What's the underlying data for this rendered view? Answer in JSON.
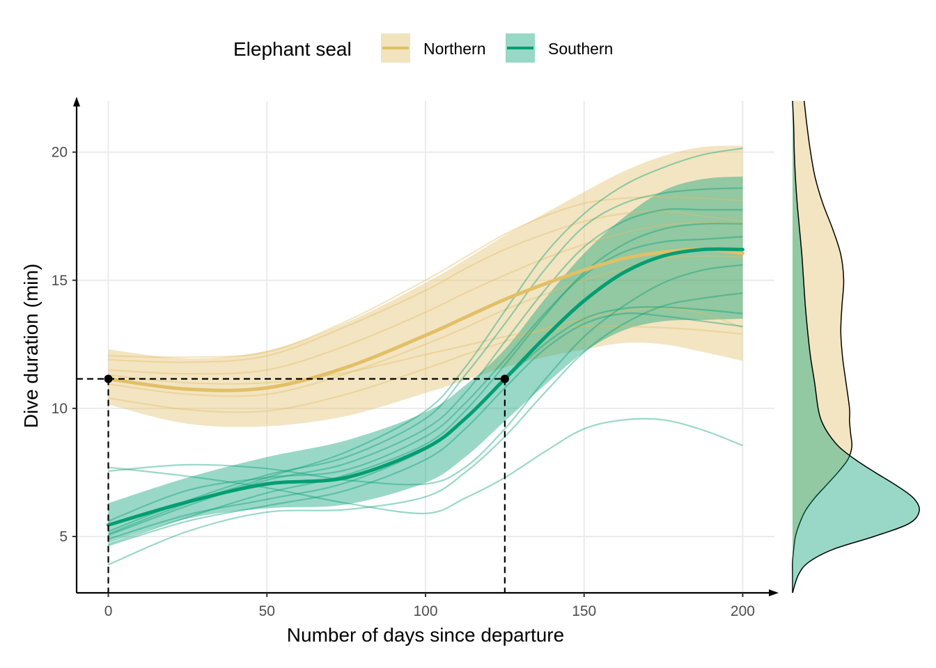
{
  "chart_data": {
    "type": "line",
    "xlabel": "Number of days since departure",
    "ylabel": "Dive duration (min)",
    "xlim": [
      -10,
      210
    ],
    "ylim": [
      2.8,
      22
    ],
    "x_ticks": [
      0,
      50,
      100,
      150,
      200
    ],
    "y_ticks": [
      5,
      10,
      15,
      20
    ],
    "grid": true,
    "legend": {
      "title": "Elephant seal",
      "position": "top",
      "entries": [
        "Northern",
        "Southern"
      ]
    },
    "colors": {
      "Northern": "#E2BF66",
      "Southern": "#009E73"
    },
    "x": [
      0,
      25,
      50,
      75,
      100,
      112.5,
      125,
      137.5,
      150,
      162.5,
      175,
      187.5,
      200
    ],
    "series": [
      {
        "name": "Northern",
        "mean": [
          11.15,
          10.75,
          10.8,
          11.6,
          12.85,
          13.55,
          14.25,
          14.85,
          15.4,
          15.85,
          16.1,
          16.2,
          16.05
        ],
        "lower": [
          10.15,
          9.4,
          9.3,
          9.7,
          10.6,
          11.1,
          11.6,
          12.0,
          12.3,
          12.55,
          12.5,
          12.2,
          11.85
        ],
        "upper": [
          12.3,
          11.95,
          12.25,
          13.35,
          14.9,
          15.8,
          16.75,
          17.6,
          18.45,
          19.25,
          19.85,
          20.2,
          20.25
        ],
        "individuals": [
          [
            11.9,
            11.8,
            12.05,
            13.2,
            14.6,
            15.45,
            16.2,
            16.8,
            17.3,
            17.6,
            17.7,
            17.5,
            17.3
          ],
          [
            11.5,
            11.35,
            11.5,
            12.45,
            13.75,
            14.5,
            15.2,
            15.85,
            16.4,
            16.85,
            17.15,
            17.25,
            17.2
          ],
          [
            10.95,
            10.55,
            10.55,
            11.35,
            12.5,
            13.15,
            13.85,
            14.45,
            15.0,
            15.45,
            15.85,
            15.95,
            15.9
          ],
          [
            10.4,
            9.95,
            9.9,
            10.55,
            11.55,
            12.1,
            12.6,
            13.1,
            13.5,
            13.8,
            13.9,
            13.7,
            13.15
          ],
          [
            11.3,
            11.0,
            11.0,
            11.4,
            12.1,
            12.45,
            12.8,
            13.05,
            13.2,
            13.2,
            13.15,
            13.05,
            12.9
          ],
          [
            12.05,
            12.0,
            12.2,
            13.4,
            15.0,
            15.9,
            16.8,
            17.5,
            18.0,
            18.2,
            18.25,
            18.2,
            18.1
          ]
        ]
      },
      {
        "name": "Southern",
        "mean": [
          5.45,
          6.35,
          7.05,
          7.3,
          8.45,
          9.6,
          11.15,
          12.75,
          14.2,
          15.3,
          15.95,
          16.2,
          16.2
        ],
        "lower": [
          4.75,
          5.7,
          6.1,
          6.25,
          7.1,
          8.1,
          9.5,
          10.9,
          12.2,
          13.05,
          13.4,
          13.45,
          13.5
        ],
        "upper": [
          6.3,
          7.3,
          8.1,
          8.75,
          9.85,
          10.9,
          12.3,
          14.25,
          16.05,
          17.45,
          18.5,
          18.95,
          19.05
        ],
        "individuals": [
          [
            5.05,
            6.2,
            7.2,
            7.85,
            9.2,
            10.6,
            12.6,
            14.6,
            16.3,
            17.3,
            17.75,
            17.75,
            17.75
          ],
          [
            4.7,
            5.75,
            6.7,
            7.4,
            8.6,
            9.9,
            11.7,
            13.6,
            15.3,
            16.4,
            17.0,
            17.2,
            17.2
          ],
          [
            5.2,
            6.4,
            7.4,
            8.1,
            9.6,
            11.3,
            13.3,
            15.4,
            17.1,
            18.0,
            18.4,
            18.55,
            18.6
          ],
          [
            4.9,
            5.85,
            6.45,
            7.1,
            8.4,
            9.6,
            11.1,
            12.5,
            13.5,
            13.9,
            13.95,
            13.85,
            13.7
          ],
          [
            4.65,
            5.6,
            6.2,
            6.8,
            8.0,
            9.2,
            10.8,
            12.3,
            13.3,
            13.7,
            13.6,
            13.4,
            13.2
          ],
          [
            5.1,
            6.3,
            7.3,
            8.3,
            9.9,
            11.6,
            13.8,
            16.0,
            17.6,
            18.7,
            19.4,
            19.9,
            20.15
          ],
          [
            7.55,
            7.8,
            7.65,
            7.2,
            7.05,
            7.7,
            9.2,
            11.1,
            12.8,
            14.0,
            14.9,
            15.4,
            15.6
          ],
          [
            7.7,
            7.35,
            6.9,
            6.3,
            5.9,
            6.5,
            7.3,
            8.3,
            9.2,
            9.55,
            9.55,
            9.15,
            8.55
          ],
          [
            3.9,
            5.2,
            5.95,
            6.05,
            6.55,
            7.5,
            8.9,
            10.6,
            12.2,
            13.3,
            14.0,
            14.3,
            14.5
          ],
          [
            5.6,
            6.8,
            7.3,
            7.6,
            8.9,
            10.2,
            11.9,
            13.7,
            15.2,
            16.1,
            16.5,
            16.6,
            16.7
          ]
        ]
      }
    ],
    "reference_points": [
      {
        "x": 0,
        "y": 11.15
      },
      {
        "x": 125,
        "y": 11.15
      }
    ],
    "marginal_density": {
      "axis": "y",
      "y": [
        2.8,
        3.5,
        4.0,
        4.5,
        5.0,
        5.5,
        6.0,
        6.5,
        7.0,
        7.5,
        8.0,
        8.5,
        9.0,
        9.5,
        10.0,
        11.0,
        12.0,
        13.0,
        14.0,
        15.0,
        16.0,
        17.0,
        18.0,
        19.0,
        20.0,
        21.0,
        22.0
      ],
      "Northern": [
        0.0,
        0.0,
        0.0,
        0.002,
        0.005,
        0.012,
        0.022,
        0.038,
        0.058,
        0.078,
        0.095,
        0.102,
        0.1,
        0.098,
        0.098,
        0.092,
        0.086,
        0.083,
        0.085,
        0.088,
        0.083,
        0.069,
        0.052,
        0.039,
        0.031,
        0.025,
        0.02
      ],
      "Southern": [
        0.0,
        0.01,
        0.028,
        0.07,
        0.14,
        0.2,
        0.218,
        0.208,
        0.178,
        0.142,
        0.108,
        0.08,
        0.062,
        0.05,
        0.044,
        0.038,
        0.031,
        0.026,
        0.022,
        0.019,
        0.016,
        0.012,
        0.008,
        0.005,
        0.003,
        0.002,
        0.0
      ]
    }
  }
}
